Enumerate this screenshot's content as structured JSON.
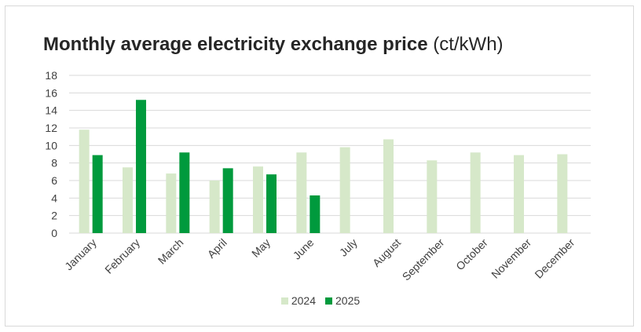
{
  "title": "Monthly average electricity exchange price",
  "title_unit": "(ct/kWh)",
  "chart_data": {
    "type": "bar",
    "title": "Monthly average electricity exchange price (ct/kWh)",
    "categories": [
      "January",
      "February",
      "March",
      "April",
      "May",
      "June",
      "July",
      "August",
      "September",
      "October",
      "November",
      "December"
    ],
    "series": [
      {
        "name": "2024",
        "color": "#d6e8c9",
        "values": [
          11.8,
          7.5,
          6.8,
          6.0,
          7.6,
          9.2,
          9.8,
          10.7,
          8.3,
          9.2,
          8.9,
          9.0
        ]
      },
      {
        "name": "2025",
        "color": "#009a3d",
        "values": [
          8.9,
          15.2,
          9.2,
          7.4,
          6.7,
          4.3,
          null,
          null,
          null,
          null,
          null,
          null
        ]
      }
    ],
    "yticks": [
      0,
      2,
      4,
      6,
      8,
      10,
      12,
      14,
      16,
      18
    ],
    "ylim": [
      0,
      18
    ],
    "grid": true,
    "legend": "bottom-center"
  }
}
